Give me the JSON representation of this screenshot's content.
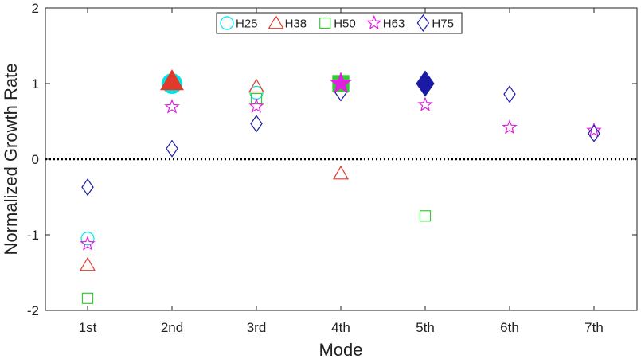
{
  "chart_data": {
    "type": "scatter",
    "title": "",
    "xlabel": "Mode",
    "ylabel": "Normalized Growth Rate",
    "categories": [
      "1st",
      "2nd",
      "3rd",
      "4th",
      "5th",
      "6th",
      "7th"
    ],
    "ylim": [
      -2,
      2
    ],
    "yticks": [
      "-2",
      "-1",
      "0",
      "1",
      "2"
    ],
    "reference_line": {
      "y": 0,
      "style": "dotted"
    },
    "grid": false,
    "legend_position": "top-center",
    "series": [
      {
        "name": "H25",
        "marker": "circle",
        "color": "#00e5e5",
        "values": [
          -1.05,
          1.0,
          0.88,
          null,
          null,
          null,
          null
        ],
        "filled": [
          false,
          true,
          false,
          false,
          false,
          false,
          false
        ]
      },
      {
        "name": "H38",
        "marker": "triangle",
        "color": "#e03a2a",
        "values": [
          -1.4,
          1.03,
          0.96,
          -0.19,
          null,
          null,
          null
        ],
        "filled": [
          false,
          true,
          false,
          false,
          false,
          false,
          false
        ]
      },
      {
        "name": "H50",
        "marker": "square",
        "color": "#33cc33",
        "values": [
          -1.84,
          null,
          0.8,
          1.0,
          -0.75,
          null,
          null
        ],
        "filled": [
          false,
          false,
          false,
          true,
          false,
          false,
          false
        ]
      },
      {
        "name": "H63",
        "marker": "star",
        "color": "#e020e0",
        "values": [
          -1.12,
          0.69,
          0.7,
          1.0,
          0.72,
          0.42,
          0.38
        ],
        "filled": [
          false,
          false,
          false,
          true,
          false,
          false,
          false
        ]
      },
      {
        "name": "H75",
        "marker": "diamond",
        "color": "#1a1aa6",
        "values": [
          -0.37,
          0.14,
          0.47,
          0.88,
          1.0,
          0.86,
          0.34
        ],
        "filled": [
          false,
          false,
          false,
          false,
          true,
          false,
          false
        ]
      }
    ]
  }
}
